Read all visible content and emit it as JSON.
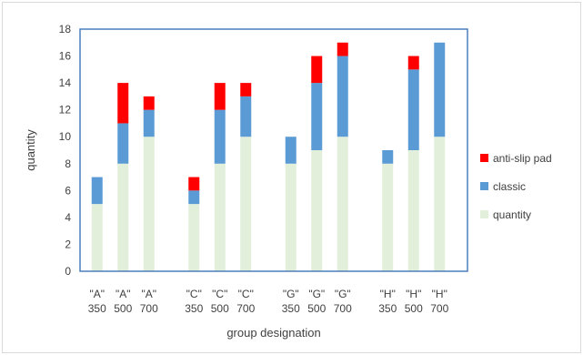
{
  "chart_data": {
    "type": "bar",
    "stacked": true,
    "title": "",
    "xlabel": "group designation",
    "ylabel": "quantity",
    "ylim": [
      0,
      18
    ],
    "yticks": [
      0,
      2,
      4,
      6,
      8,
      10,
      12,
      14,
      16,
      18
    ],
    "grid": false,
    "legend_position": "right",
    "category_groups": [
      {
        "name": "A",
        "categories": [
          [
            "\"A\"",
            "350"
          ],
          [
            "\"A\"",
            "500"
          ],
          [
            "\"A\"",
            "700"
          ]
        ]
      },
      {
        "name": "C",
        "categories": [
          [
            "\"C\"",
            "350"
          ],
          [
            "\"C\"",
            "500"
          ],
          [
            "\"C\"",
            "700"
          ]
        ]
      },
      {
        "name": "G",
        "categories": [
          [
            "\"G\"",
            "350"
          ],
          [
            "\"G\"",
            "500"
          ],
          [
            "\"G\"",
            "700"
          ]
        ]
      },
      {
        "name": "H",
        "categories": [
          [
            "\"H\"",
            "350"
          ],
          [
            "\"H\"",
            "500"
          ],
          [
            "\"H\"",
            "700"
          ]
        ]
      }
    ],
    "series": [
      {
        "name": "quantity",
        "color": "#e2efda",
        "values": [
          5,
          8,
          10,
          5,
          8,
          10,
          8,
          9,
          10,
          8,
          9,
          10
        ]
      },
      {
        "name": "classic",
        "color": "#5b9bd5",
        "values": [
          2,
          3,
          2,
          1,
          4,
          3,
          2,
          5,
          6,
          1,
          6,
          7
        ]
      },
      {
        "name": "anti-slip pad",
        "color": "#ff0000",
        "values": [
          0,
          3,
          1,
          1,
          2,
          1,
          0,
          2,
          1,
          0,
          1,
          0
        ]
      }
    ],
    "legend_order": [
      "anti-slip pad",
      "classic",
      "quantity"
    ]
  }
}
